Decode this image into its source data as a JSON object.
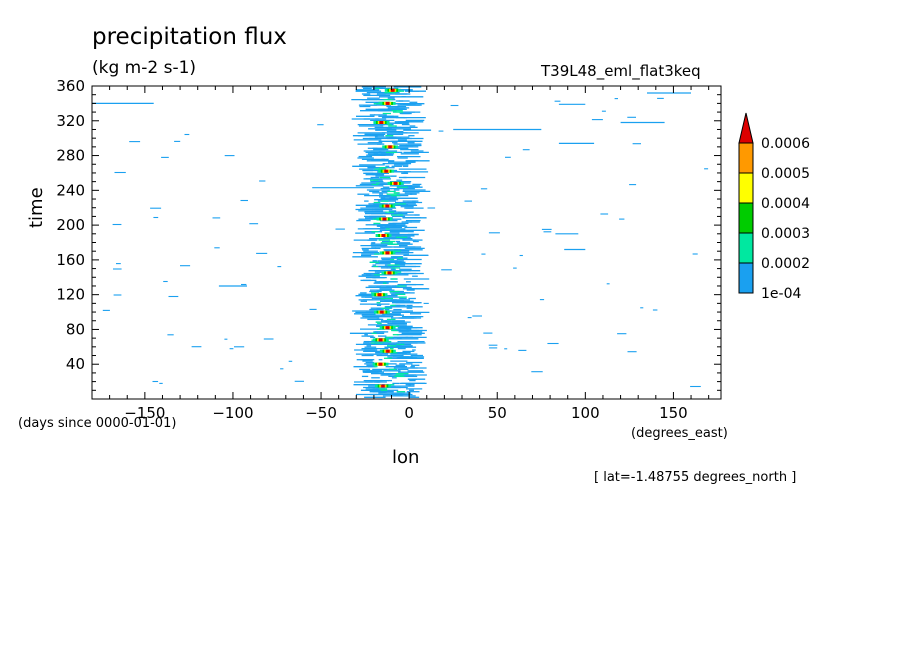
{
  "chart_data": {
    "type": "heatmap",
    "title": "precipitation flux",
    "units": "(kg m-2 s-1)",
    "run_label": "T39L48_eml_flat3keq",
    "xlabel": "lon",
    "ylabel": "time",
    "x_units_note": "(degrees_east)",
    "y_units_note": "(days since 0000-01-01)",
    "subset_note": "[ lat=-1.48755 degrees_north ]",
    "xlim": [
      -180,
      177
    ],
    "ylim": [
      0,
      360
    ],
    "x_ticks": [
      -150,
      -100,
      -50,
      0,
      50,
      100,
      150
    ],
    "y_ticks": [
      40,
      80,
      120,
      160,
      200,
      240,
      280,
      320,
      360
    ],
    "colorbar": {
      "levels": [
        0.0001,
        0.0002,
        0.0003,
        0.0004,
        0.0005,
        0.0006
      ],
      "labels": [
        "1e-04",
        "0.0002",
        "0.0003",
        "0.0004",
        "0.0005",
        "0.0006"
      ],
      "colors": [
        "#1aa0f0",
        "#00e8a0",
        "#00cc00",
        "#ffff00",
        "#ff9900",
        "#dd0000"
      ],
      "extend": "max"
    },
    "band": {
      "center_lon": -12,
      "core_halfwidth": 12,
      "dominant_level": "1e-04",
      "peak_level": "0.0006"
    },
    "hotspots_time": [
      15,
      40,
      55,
      68,
      82,
      100,
      120,
      145,
      168,
      188,
      207,
      222,
      248,
      262,
      290,
      318,
      340,
      355
    ],
    "streaks": [
      {
        "lon": [
          -180,
          -145
        ],
        "t": 340
      },
      {
        "lon": [
          -108,
          -92
        ],
        "t": 130
      },
      {
        "lon": [
          -55,
          -20
        ],
        "t": 243
      },
      {
        "lon": [
          25,
          75
        ],
        "t": 310
      },
      {
        "lon": [
          85,
          100
        ],
        "t": 339
      },
      {
        "lon": [
          83,
          96
        ],
        "t": 190
      },
      {
        "lon": [
          88,
          100
        ],
        "t": 172
      },
      {
        "lon": [
          85,
          105
        ],
        "t": 294
      },
      {
        "lon": [
          120,
          145
        ],
        "t": 318
      },
      {
        "lon": [
          135,
          160
        ],
        "t": 352
      }
    ]
  }
}
